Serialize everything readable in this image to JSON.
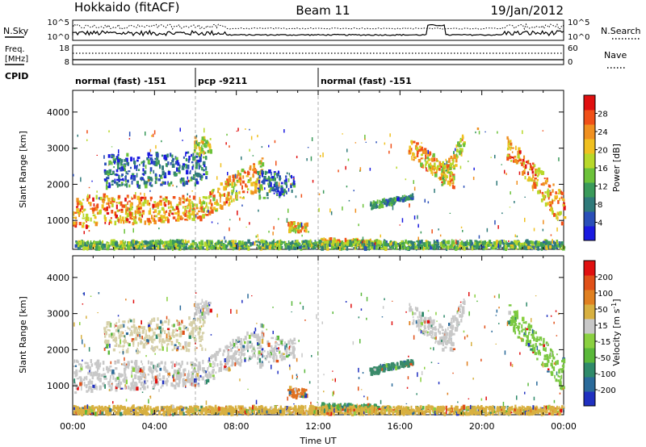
{
  "header": {
    "title": "Hokkaido (fitACF)",
    "beam": "Beam 11",
    "date": "19/Jan/2012"
  },
  "noise_panel": {
    "left_label": "N.Sky",
    "right_label": "N.Search",
    "left_ticks": [
      "10^5",
      "10^0"
    ],
    "right_ticks": [
      "10^5",
      "10^0"
    ]
  },
  "freq_panel": {
    "left_label_1": "Freq.",
    "left_label_2": "[MHz]",
    "right_label": "Nave",
    "left_ticks": [
      "18",
      "8"
    ],
    "right_ticks": [
      "60",
      "0"
    ]
  },
  "cpid": {
    "label": "CPID",
    "segments": [
      {
        "start": 0,
        "end": 6,
        "text": "normal (fast) -151"
      },
      {
        "start": 6,
        "end": 12,
        "text": "pcp -9211"
      },
      {
        "start": 12,
        "end": 24,
        "text": "normal (fast) -151"
      }
    ]
  },
  "chart_data": [
    {
      "type": "heatmap",
      "name": "power",
      "ylabel": "Slant Range [km]",
      "xlim": [
        0,
        24
      ],
      "ylim": [
        200,
        4600
      ],
      "yticks": [
        "1000",
        "2000",
        "3000",
        "4000"
      ],
      "colorbar": {
        "label": "Power [dB]",
        "ticks": [
          "4",
          "8",
          "12",
          "16",
          "20",
          "24",
          "28"
        ],
        "colors": [
          "#1a1ae0",
          "#2a4fb8",
          "#2f7a7a",
          "#3a9a5a",
          "#6cc23a",
          "#b8d82a",
          "#f0c020",
          "#f09020",
          "#f05018",
          "#e01010"
        ]
      },
      "regions": [
        {
          "x": [
            0,
            5.9
          ],
          "y_lo": [
            800,
            1000
          ],
          "y_hi": [
            1700,
            1650
          ],
          "level": 0.75
        },
        {
          "x": [
            5.8,
            9.3
          ],
          "y_lo": [
            900,
            1900
          ],
          "y_hi": [
            1500,
            2800
          ],
          "level": 0.7
        },
        {
          "x": [
            1.5,
            6.5
          ],
          "y_lo": [
            1900,
            2000
          ],
          "y_hi": [
            2800,
            2900
          ],
          "level": 0.2
        },
        {
          "x": [
            5.9,
            6.7
          ],
          "y_lo": [
            2800,
            2900
          ],
          "y_hi": [
            3300,
            3300
          ],
          "level": 0.55
        },
        {
          "x": [
            9.0,
            10.8
          ],
          "y_lo": [
            1500,
            1800
          ],
          "y_hi": [
            2400,
            2300
          ],
          "level": 0.2
        },
        {
          "x": [
            10.5,
            11.4
          ],
          "y_lo": [
            650,
            700
          ],
          "y_hi": [
            950,
            900
          ],
          "level": 0.65
        },
        {
          "x": [
            12.1,
            15.0
          ],
          "y_lo": [
            300,
            300
          ],
          "y_hi": [
            500,
            450
          ],
          "level": 0.7
        },
        {
          "x": [
            14.5,
            16.6
          ],
          "y_lo": [
            1300,
            1600
          ],
          "y_hi": [
            1500,
            1700
          ],
          "level": 0.25
        },
        {
          "x": [
            16.4,
            18.6
          ],
          "y_lo": [
            2700,
            1900
          ],
          "y_hi": [
            3300,
            2400
          ],
          "level": 0.7
        },
        {
          "x": [
            18.0,
            19.1
          ],
          "y_lo": [
            1900,
            2900
          ],
          "y_hi": [
            2400,
            3400
          ],
          "level": 0.6
        },
        {
          "x": [
            21.2,
            24
          ],
          "y_lo": [
            2700,
            800
          ],
          "y_hi": [
            3300,
            1700
          ],
          "level": 0.75
        },
        {
          "x": [
            0,
            24
          ],
          "y_lo": [
            220,
            220
          ],
          "y_hi": [
            420,
            420
          ],
          "level": 0.4
        }
      ]
    },
    {
      "type": "heatmap",
      "name": "velocity",
      "xlabel": "Time UT",
      "xlim": [
        0,
        24
      ],
      "ylim": [
        200,
        4600
      ],
      "xticks": [
        "00:00",
        "04:00",
        "08:00",
        "12:00",
        "16:00",
        "20:00",
        "00:00"
      ],
      "yticks": [
        "1000",
        "2000",
        "3000",
        "4000"
      ],
      "colorbar": {
        "label": "Velocity [m s^-1]",
        "ticks": [
          "200",
          "100",
          "50",
          "15",
          "-15",
          "-50",
          "-100",
          "-200"
        ],
        "colors": [
          "#2030c0",
          "#2a6a9a",
          "#2f8a6a",
          "#5ab83a",
          "#8ad040",
          "#c8c8c8",
          "#d8b040",
          "#e08020",
          "#e05018",
          "#e01010"
        ]
      },
      "regions": [
        {
          "x": [
            0,
            5.9
          ],
          "y_lo": [
            800,
            1000
          ],
          "y_hi": [
            1700,
            1650
          ],
          "color": "#c8c8c8"
        },
        {
          "x": [
            5.8,
            9.3
          ],
          "y_lo": [
            900,
            1900
          ],
          "y_hi": [
            1500,
            2800
          ],
          "color": "#c8c8c8"
        },
        {
          "x": [
            1.5,
            6.5
          ],
          "y_lo": [
            1900,
            2000
          ],
          "y_hi": [
            2800,
            2900
          ],
          "color": "#d6d0a8"
        },
        {
          "x": [
            5.9,
            6.7
          ],
          "y_lo": [
            2800,
            2900
          ],
          "y_hi": [
            3300,
            3300
          ],
          "color": "#c8c8c8"
        },
        {
          "x": [
            9.0,
            10.8
          ],
          "y_lo": [
            1500,
            1800
          ],
          "y_hi": [
            2400,
            2300
          ],
          "color": "#c8c8c8"
        },
        {
          "x": [
            10.5,
            11.4
          ],
          "y_lo": [
            650,
            700
          ],
          "y_hi": [
            950,
            900
          ],
          "color": "#e07020"
        },
        {
          "x": [
            12.1,
            15.0
          ],
          "y_lo": [
            300,
            300
          ],
          "y_hi": [
            500,
            450
          ],
          "color": "#3a9a5a"
        },
        {
          "x": [
            14.5,
            16.6
          ],
          "y_lo": [
            1300,
            1600
          ],
          "y_hi": [
            1500,
            1700
          ],
          "color": "#3a8a6a"
        },
        {
          "x": [
            16.4,
            18.6
          ],
          "y_lo": [
            2700,
            1900
          ],
          "y_hi": [
            3300,
            2400
          ],
          "color": "#c8c8c8"
        },
        {
          "x": [
            18.0,
            19.1
          ],
          "y_lo": [
            1900,
            2900
          ],
          "y_hi": [
            2400,
            3400
          ],
          "color": "#c8c8c8"
        },
        {
          "x": [
            21.2,
            24
          ],
          "y_lo": [
            2700,
            800
          ],
          "y_hi": [
            3300,
            1700
          ],
          "color": "#7ac840"
        },
        {
          "x": [
            0,
            24
          ],
          "y_lo": [
            220,
            220
          ],
          "y_hi": [
            420,
            420
          ],
          "color": "#d8b040"
        }
      ]
    }
  ]
}
